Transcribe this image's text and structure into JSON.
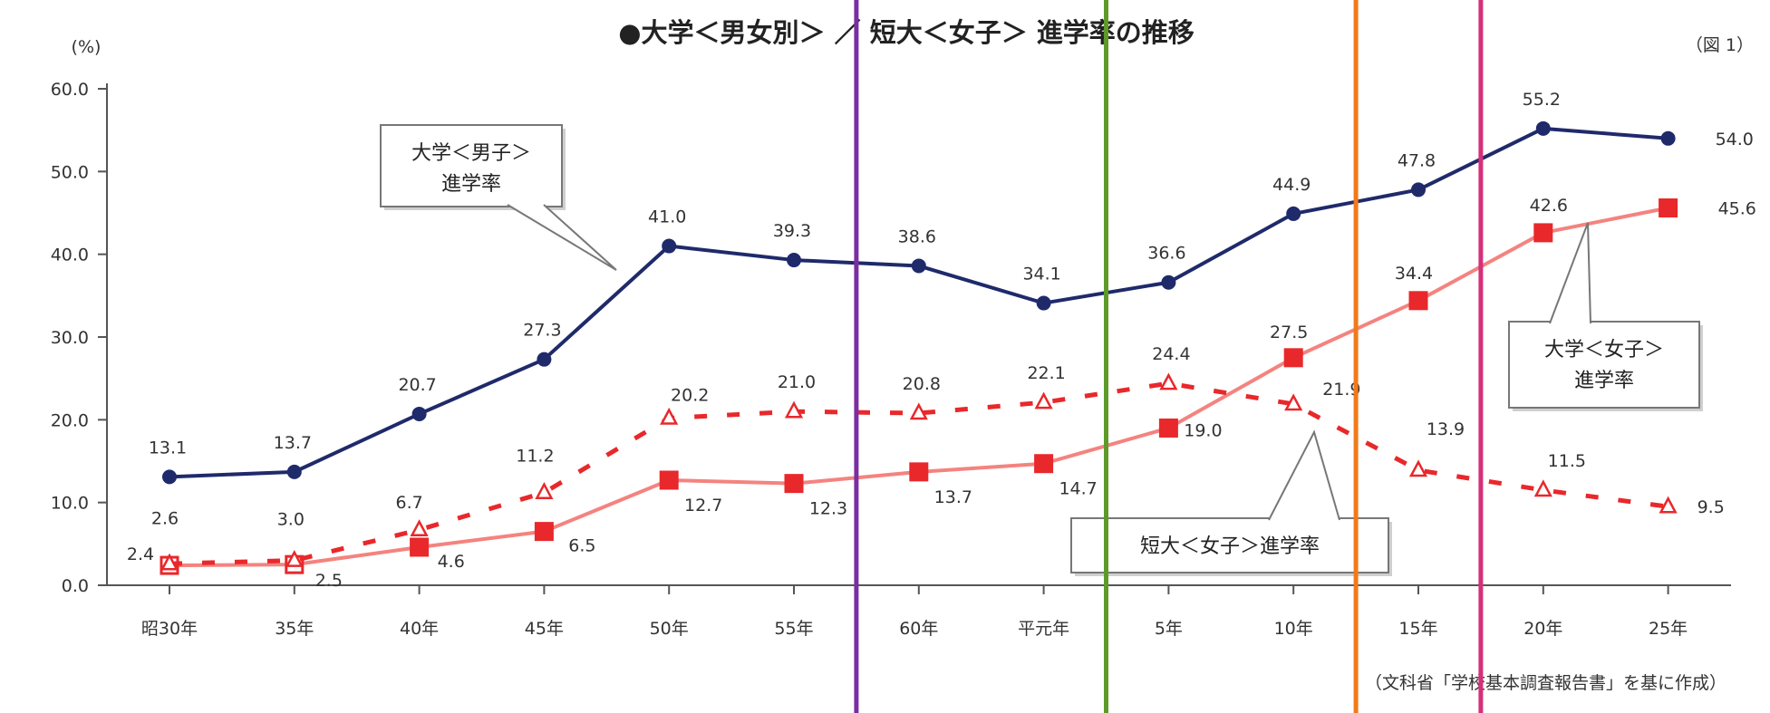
{
  "chart_data": {
    "type": "line",
    "title": "●大学＜男女別＞ ／ 短大＜女子＞ 進学率の推移",
    "figure_label": "（図 1）",
    "ylabel": "(%)",
    "source": "（文科省「学校基本調査報告書」を基に作成）",
    "ylim": [
      0,
      60
    ],
    "yticks": [
      "0.0",
      "10.0",
      "20.0",
      "30.0",
      "40.0",
      "50.0",
      "60.0"
    ],
    "categories": [
      "昭30年",
      "35年",
      "40年",
      "45年",
      "50年",
      "55年",
      "60年",
      "平元年",
      "5年",
      "10年",
      "15年",
      "20年",
      "25年"
    ],
    "series": [
      {
        "key": "male",
        "color": "#1f2a6b",
        "style": "solid",
        "marker": "circle",
        "callout": [
          "大学＜男子＞",
          "進学率"
        ],
        "values": [
          13.1,
          13.7,
          20.7,
          27.3,
          41.0,
          39.3,
          38.6,
          34.1,
          36.6,
          44.9,
          47.8,
          55.2,
          54.0
        ],
        "labels": [
          "13.1",
          "13.7",
          "20.7",
          "27.3",
          "41.0",
          "39.3",
          "38.6",
          "34.1",
          "36.6",
          "44.9",
          "47.8",
          "55.2",
          "54.0"
        ]
      },
      {
        "key": "female_univ",
        "color": "#e8282b",
        "style": "solid",
        "marker": "square",
        "callout": [
          "大学＜女子＞",
          "進学率"
        ],
        "values": [
          2.4,
          2.5,
          4.6,
          6.5,
          12.7,
          12.3,
          13.7,
          14.7,
          19.0,
          27.5,
          34.4,
          42.6,
          45.6
        ],
        "labels": [
          "2.4",
          "2.5",
          "4.6",
          "6.5",
          "12.7",
          "12.3",
          "13.7",
          "14.7",
          "19.0",
          "27.5",
          "34.4",
          "42.6",
          "45.6"
        ]
      },
      {
        "key": "female_jc",
        "color": "#e8282b",
        "style": "dashed",
        "marker": "triangle",
        "callout": [
          "短大＜女子＞進学率"
        ],
        "values": [
          2.6,
          3.0,
          6.7,
          11.2,
          20.2,
          21.0,
          20.8,
          22.1,
          24.4,
          21.9,
          13.9,
          11.5,
          9.5
        ],
        "labels": [
          "2.6",
          "3.0",
          "6.7",
          "11.2",
          "20.2",
          "21.0",
          "20.8",
          "22.1",
          "24.4",
          "21.9",
          "13.9",
          "11.5",
          "9.5"
        ]
      }
    ],
    "overlay_lines": [
      {
        "after_category": "55年",
        "color": "#7a2ea0"
      },
      {
        "after_category": "平元年",
        "color": "#5e9a2a"
      },
      {
        "after_category": "10年",
        "color": "#f07a1a"
      },
      {
        "after_category": "15年",
        "color": "#d6307a"
      }
    ]
  }
}
